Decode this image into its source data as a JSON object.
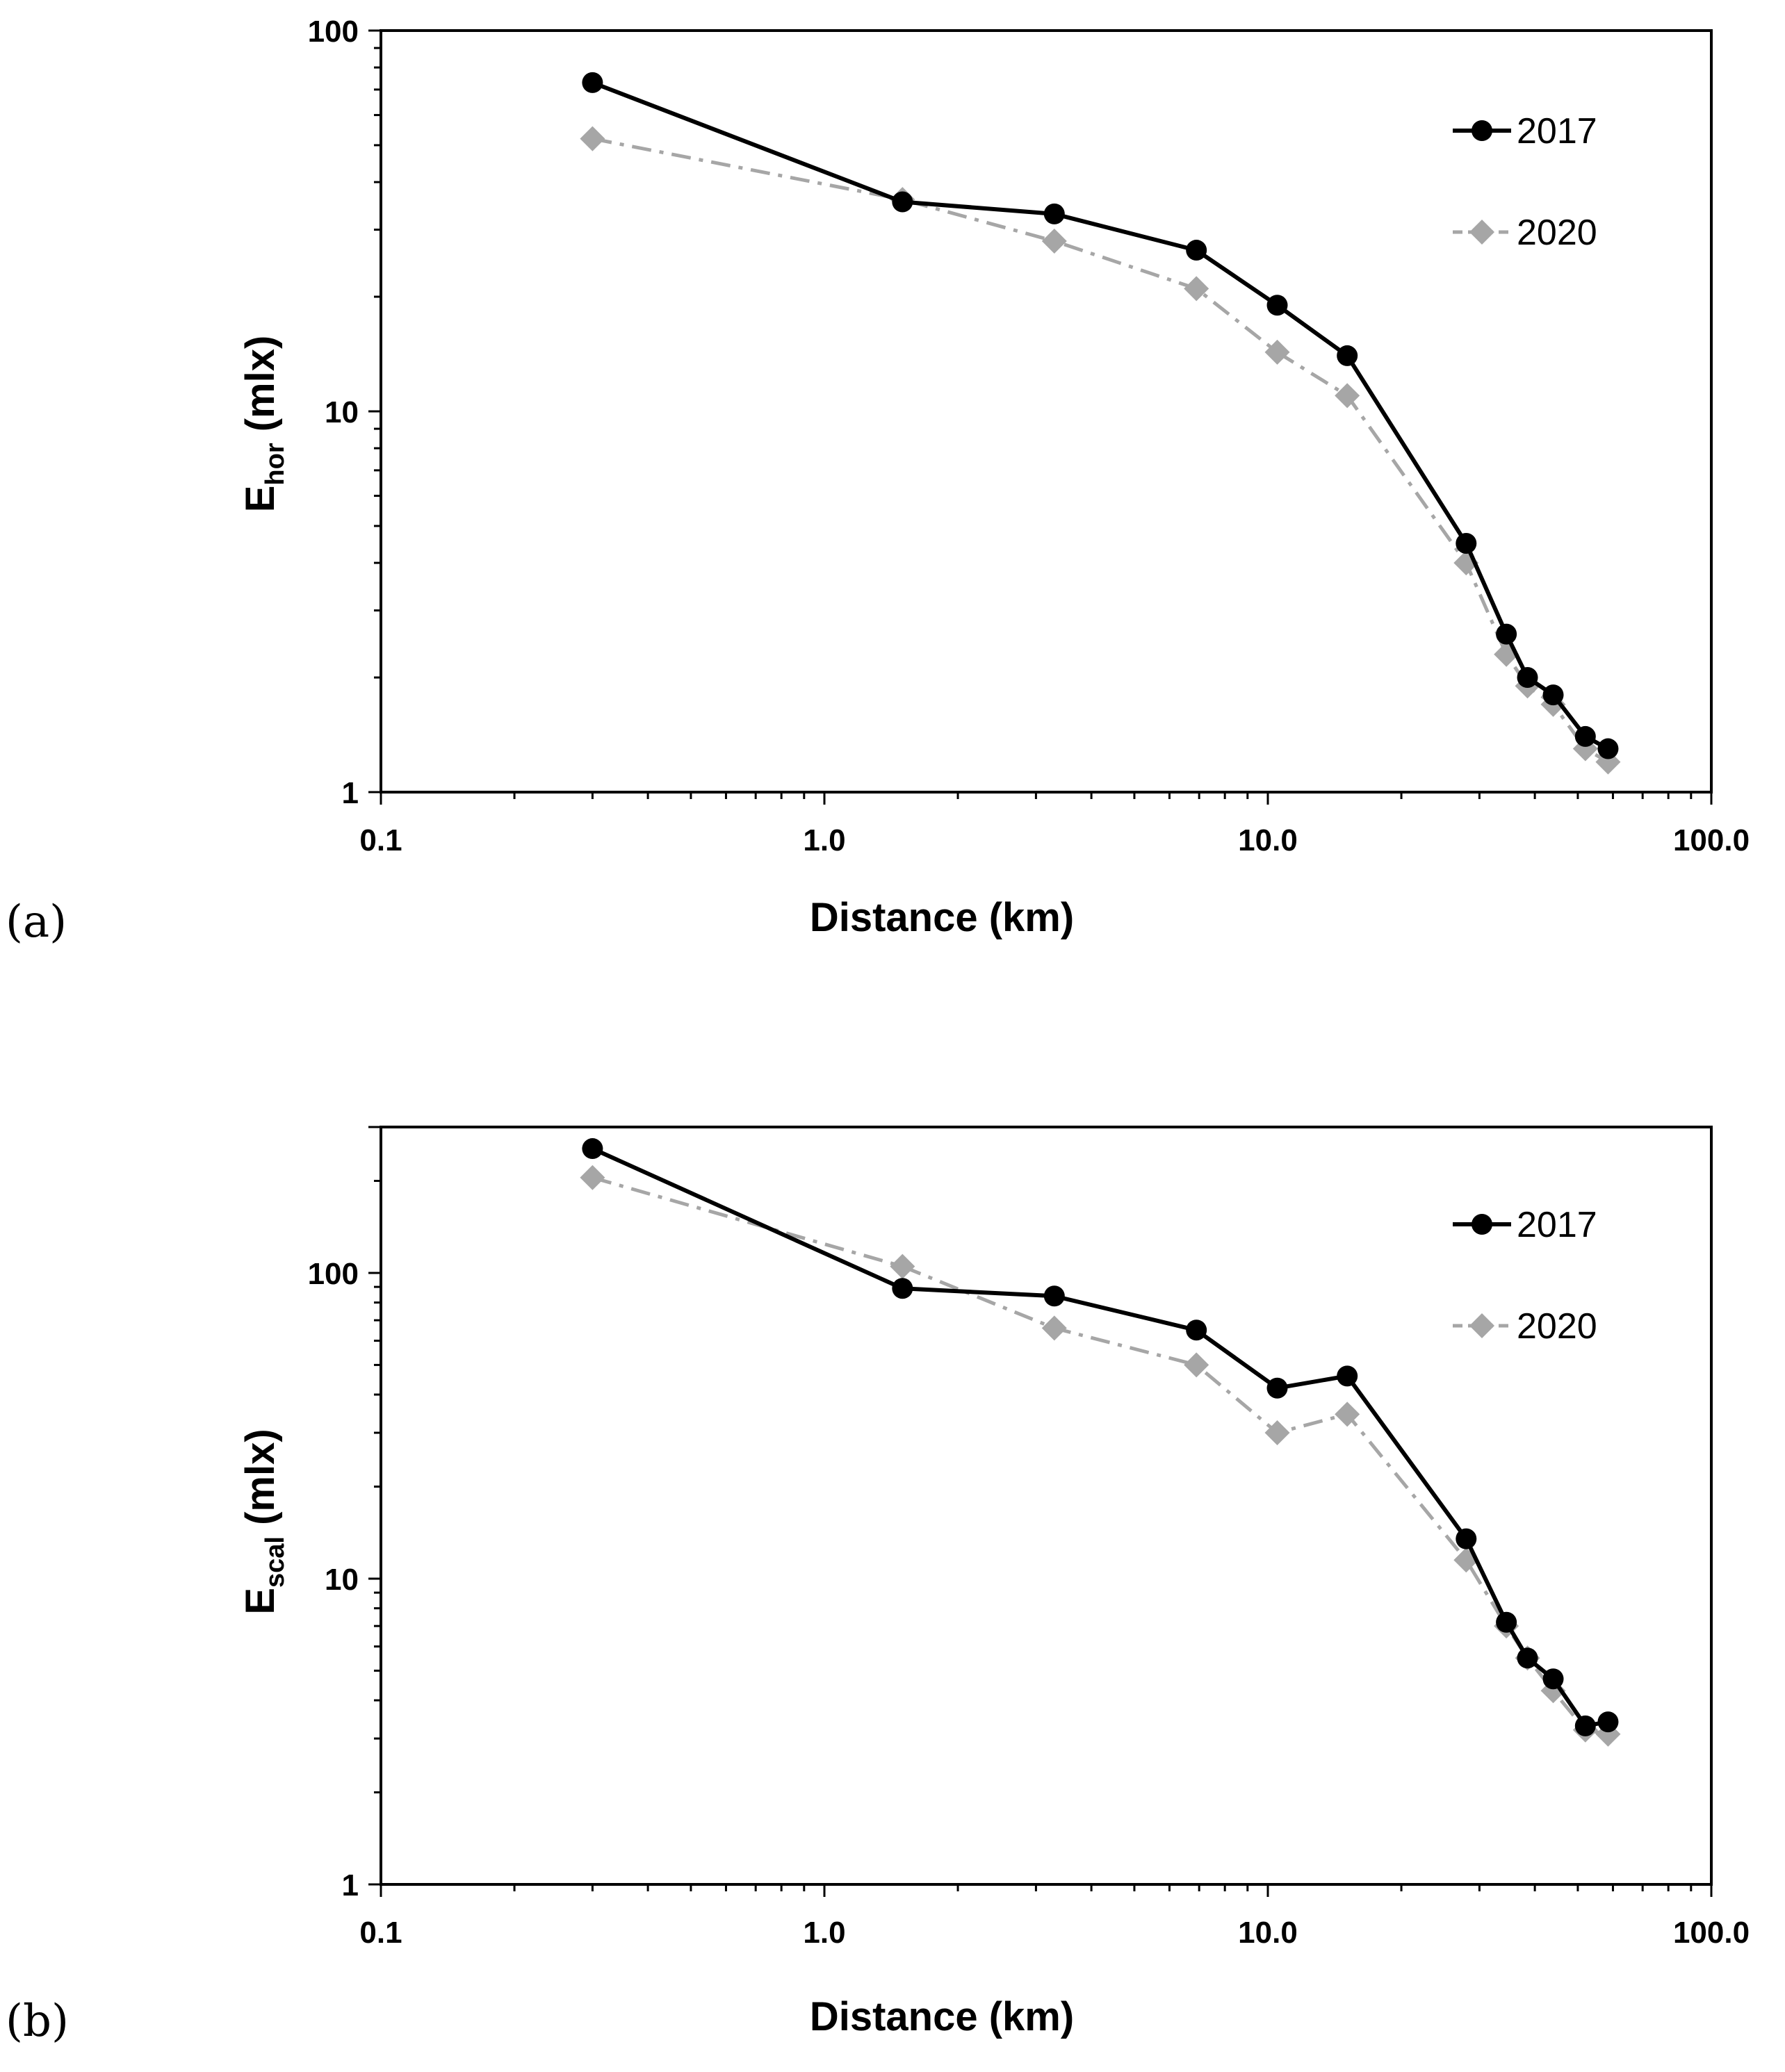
{
  "colors": {
    "series_2017": "#000000",
    "series_2020": "#a6a6a6",
    "axes": "#000000"
  },
  "chart_data": [
    {
      "type": "line",
      "panel_label": "(a)",
      "x_scale": "log",
      "y_scale": "log",
      "xlim": [
        0.1,
        100
      ],
      "ylim": [
        1,
        100
      ],
      "xlabel": "Distance (km)",
      "ylabel_main": "E",
      "ylabel_sub": "hor",
      "ylabel_suffix": " (mlx)",
      "x_tick_labels": [
        "0.1",
        "1.0",
        "10.0",
        "100.0"
      ],
      "x_tick_values": [
        0.1,
        1,
        10,
        100
      ],
      "y_tick_labels": [
        "1",
        "10",
        "100"
      ],
      "y_tick_values": [
        1,
        10,
        100
      ],
      "legend_position": "top-right",
      "series": [
        {
          "name": "2017",
          "marker": "circle",
          "line_style": "solid",
          "x": [
            0.3,
            1.5,
            3.3,
            6.9,
            10.5,
            15.1,
            28.0,
            34.5,
            38.5,
            44.0,
            52.0,
            58.5
          ],
          "y": [
            73,
            35.5,
            33,
            26.5,
            19,
            14,
            4.5,
            2.6,
            2.0,
            1.8,
            1.4,
            1.3
          ]
        },
        {
          "name": "2020",
          "marker": "diamond",
          "line_style": "dash-dot",
          "x": [
            0.3,
            1.5,
            3.3,
            6.9,
            10.5,
            15.1,
            28.0,
            34.5,
            38.5,
            44.0,
            52.0,
            58.5
          ],
          "y": [
            52,
            36,
            28,
            21,
            14.3,
            11,
            4.0,
            2.3,
            1.9,
            1.7,
            1.3,
            1.2
          ]
        }
      ]
    },
    {
      "type": "line",
      "panel_label": "(b)",
      "x_scale": "log",
      "y_scale": "log",
      "xlim": [
        0.1,
        100
      ],
      "ylim": [
        1,
        300
      ],
      "xlabel": "Distance (km)",
      "ylabel_main": "E",
      "ylabel_sub": "scal",
      "ylabel_suffix": " (mlx)",
      "x_tick_labels": [
        "0.1",
        "1.0",
        "10.0",
        "100.0"
      ],
      "x_tick_values": [
        0.1,
        1,
        10,
        100
      ],
      "y_tick_labels": [
        "1",
        "10",
        "100"
      ],
      "y_tick_values": [
        1,
        10,
        100
      ],
      "legend_position": "top-right",
      "series": [
        {
          "name": "2017",
          "marker": "circle",
          "line_style": "solid",
          "x": [
            0.3,
            1.5,
            3.3,
            6.9,
            10.5,
            15.1,
            28.0,
            34.5,
            38.5,
            44.0,
            52.0,
            58.5
          ],
          "y": [
            255,
            89,
            84,
            65,
            42,
            46,
            13.5,
            7.2,
            5.5,
            4.7,
            3.3,
            3.4
          ]
        },
        {
          "name": "2020",
          "marker": "diamond",
          "line_style": "dash-dot",
          "x": [
            0.3,
            1.5,
            3.3,
            6.9,
            10.5,
            15.1,
            28.0,
            34.5,
            38.5,
            44.0,
            52.0,
            58.5
          ],
          "y": [
            205,
            105,
            66,
            50,
            30,
            34.5,
            11.5,
            7.0,
            5.5,
            4.3,
            3.2,
            3.1
          ]
        }
      ]
    }
  ]
}
